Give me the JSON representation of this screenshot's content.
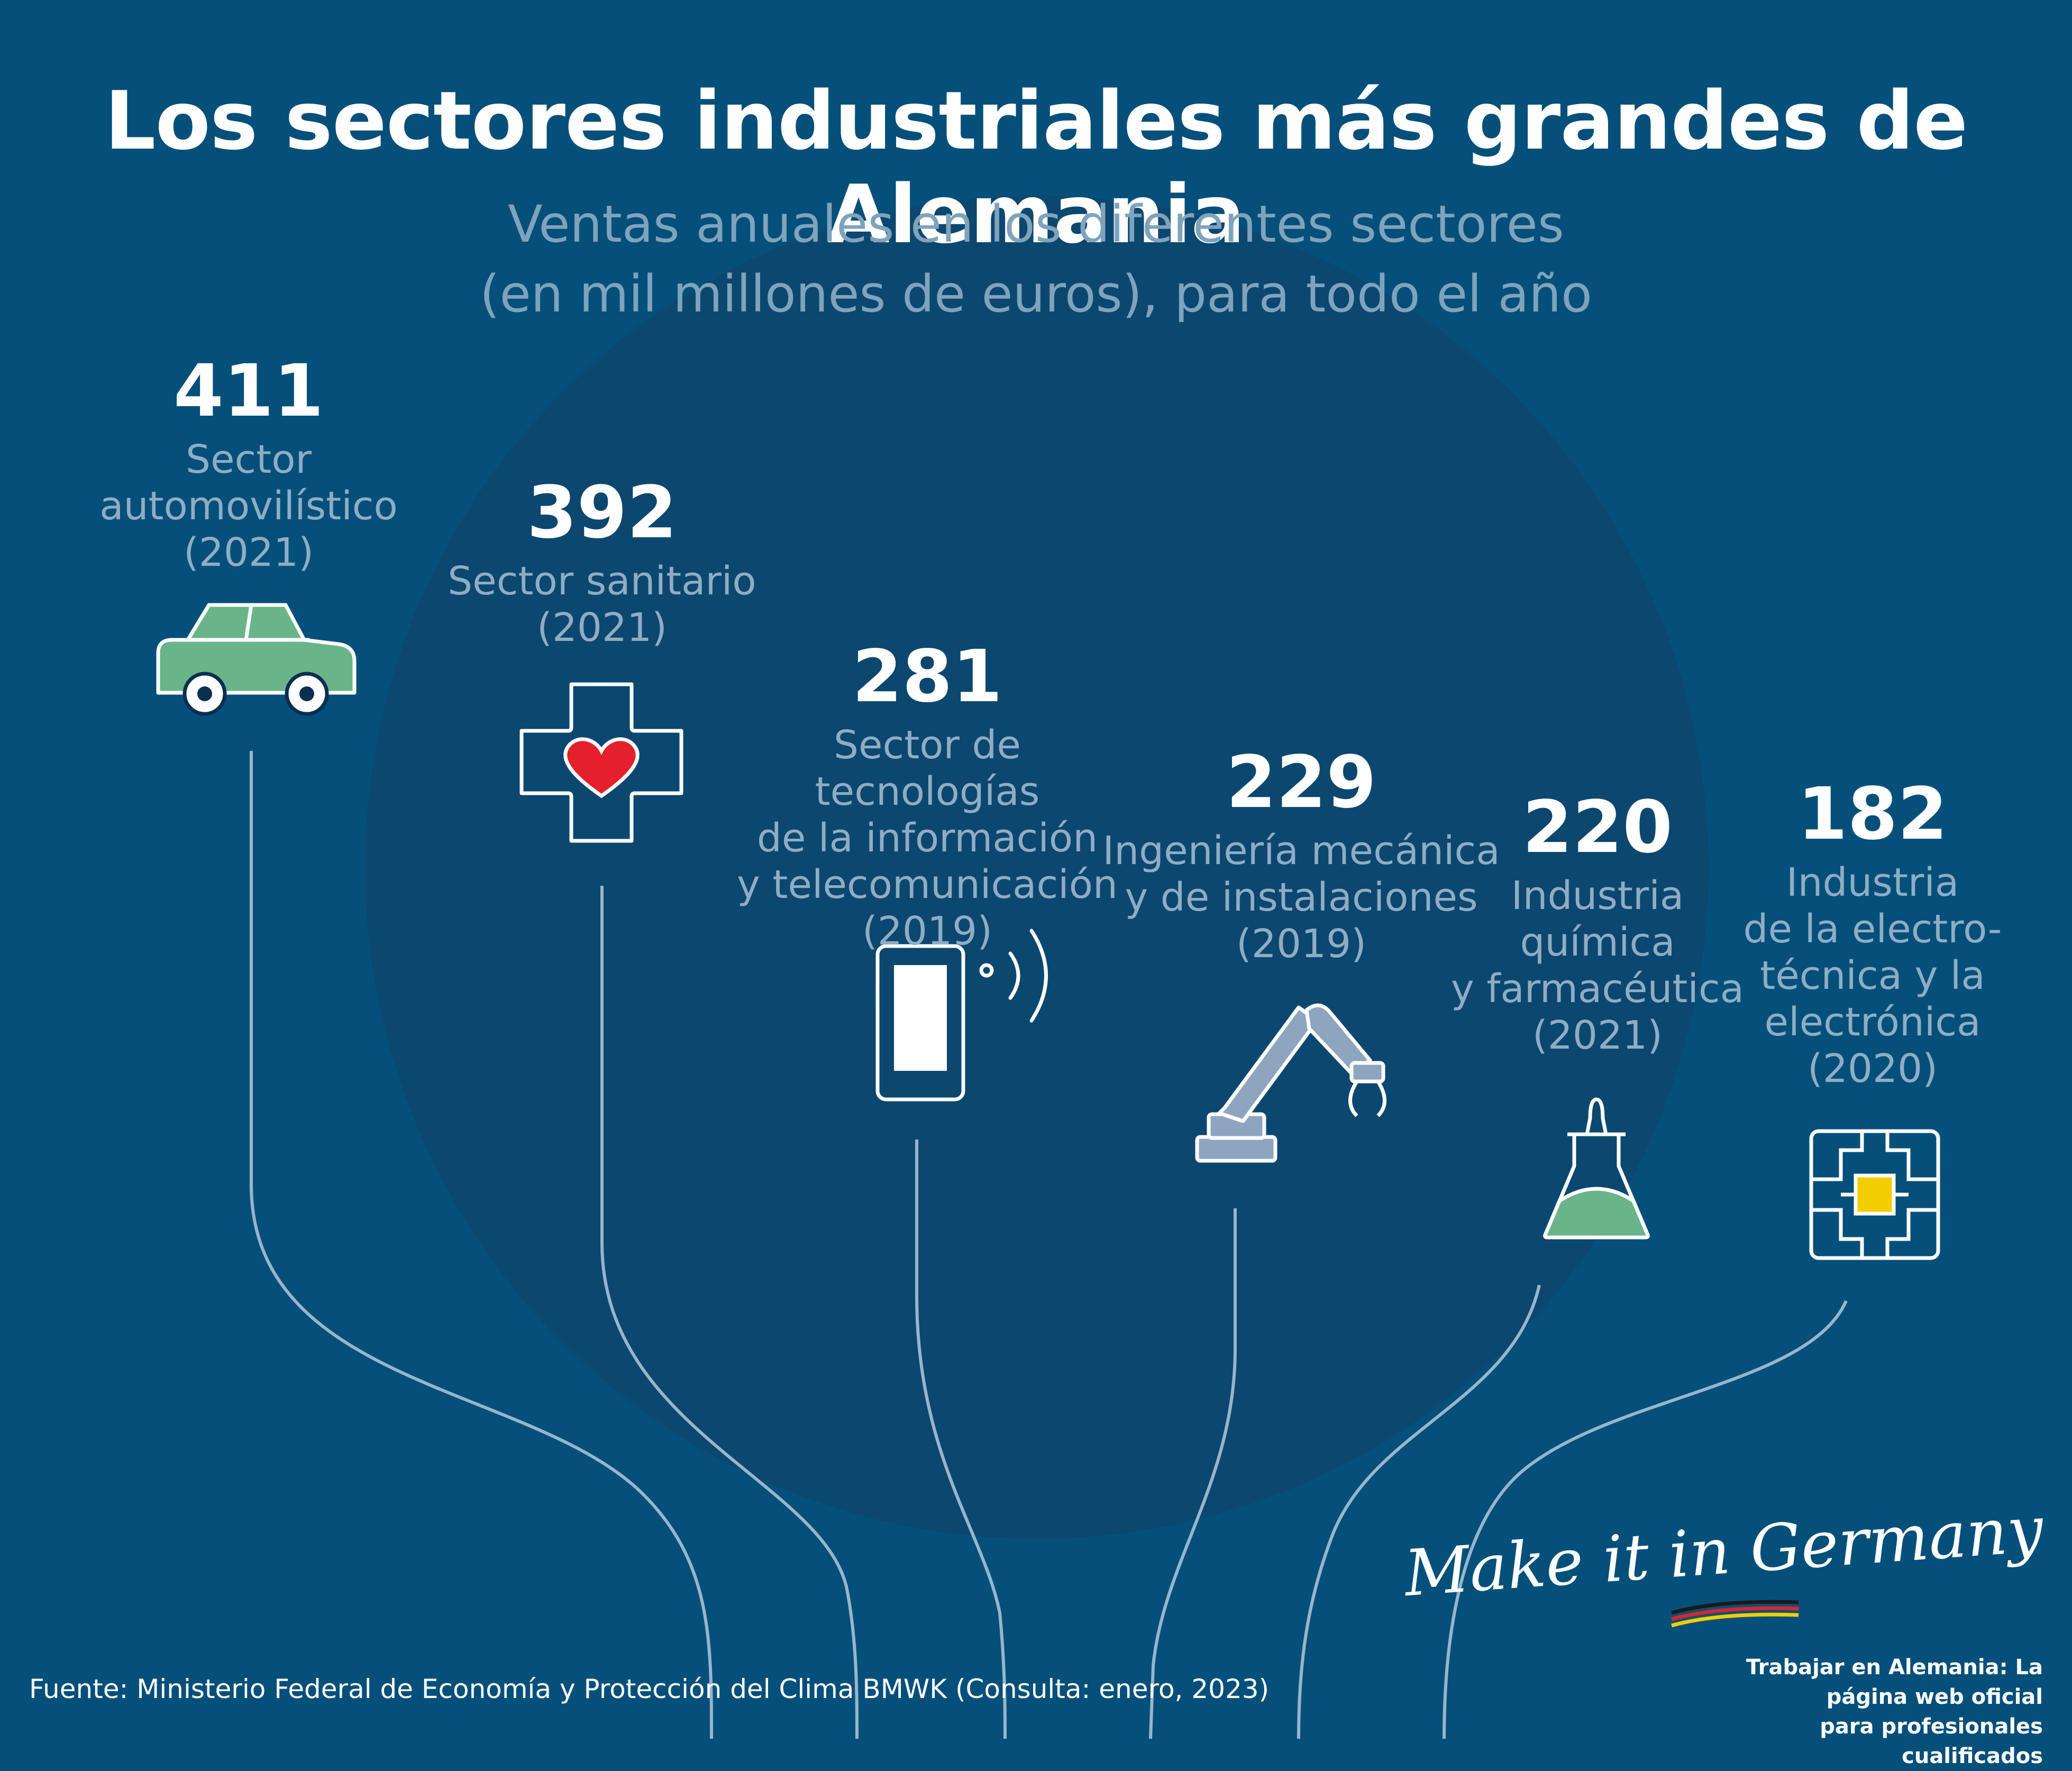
{
  "header": {
    "title": "Los sectores industriales más grandes de Alemania",
    "subtitle_line1": "Ventas anuales en los diferentes sectores",
    "subtitle_line2": "(en mil millones de euros), para todo el año"
  },
  "chart_data": {
    "type": "bar",
    "title": "Los sectores industriales más grandes de Alemania",
    "subtitle": "Ventas anuales en los diferentes sectores (en mil millones de euros), para todo el año",
    "categories": [
      "Sector automovilístico (2021)",
      "Sector sanitario (2021)",
      "Sector de tecnologías de la información y telecomunicación (2019)",
      "Ingeniería mecánica y de instalaciones (2019)",
      "Industria química y farmacéutica (2021)",
      "Industria de la electrotécnica y la electrónica (2020)"
    ],
    "values": [
      411,
      392,
      281,
      229,
      220,
      182
    ],
    "items": [
      {
        "value": "411",
        "label": "Sector\nautomovilístico\n(2021)",
        "icon": "car-icon"
      },
      {
        "value": "392",
        "label": "Sector sanitario\n(2021)",
        "icon": "medical-cross-heart-icon"
      },
      {
        "value": "281",
        "label": "Sector de tecnologías\nde la información\ny telecomunicación\n(2019)",
        "icon": "smartphone-signal-icon"
      },
      {
        "value": "229",
        "label": "Ingeniería mecánica\ny de instalaciones\n(2019)",
        "icon": "robot-arm-icon"
      },
      {
        "value": "220",
        "label": "Industria\nquímica\ny farmacéutica\n(2021)",
        "icon": "flask-icon"
      },
      {
        "value": "182",
        "label": "Industria\nde la electro-\ntécnica y la\nelectrónica\n(2020)",
        "icon": "chip-icon"
      }
    ]
  },
  "colors": {
    "background": "#05507a",
    "circle": "#0c4770",
    "line": "#98b5cc",
    "green": "#6ab48a",
    "red": "#e3202b",
    "grey_blue": "#8ea5bf",
    "yellow": "#f2cd00"
  },
  "footer": {
    "source": "Fuente: Ministerio Federal de Economía y Protección del Clima BMWK (Consulta: enero, 2023)",
    "brand": "Make it in Germany",
    "tagline_line1": "Trabajar en Alemania: La página web oficial",
    "tagline_line2": "para profesionales cualificados"
  }
}
